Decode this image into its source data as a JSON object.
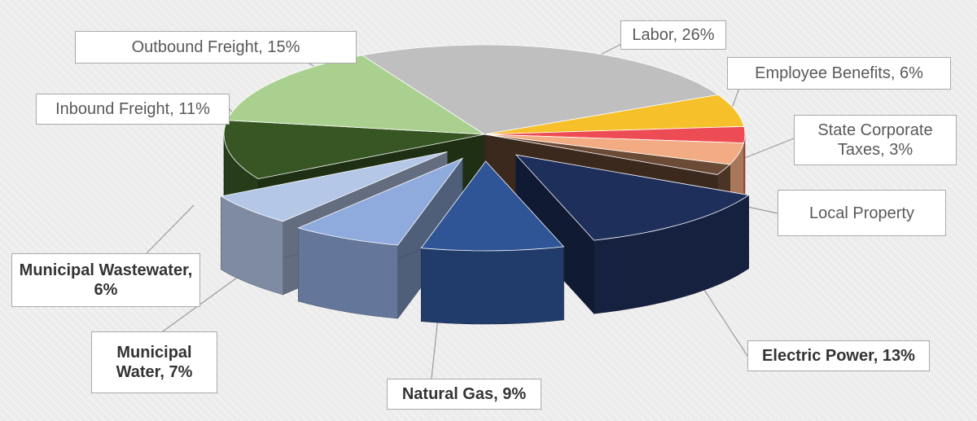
{
  "chart_data": {
    "type": "pie",
    "style": "3d-exploded",
    "unit": "%",
    "slices": [
      {
        "key": "labor",
        "label": "Labor, 26%",
        "name": "Labor",
        "value": 26,
        "color": "#bfbfbf",
        "exploded": false
      },
      {
        "key": "employee-benefits",
        "label": "Employee Benefits, 6%",
        "name": "Employee Benefits",
        "value": 6,
        "color": "#f5c02a",
        "exploded": false
      },
      {
        "key": "state-corporate-taxes",
        "label": "State Corporate Taxes, 3%",
        "name": "State Corporate Taxes",
        "value": 3,
        "color": "#ee4c55",
        "exploded": false
      },
      {
        "key": "local-property",
        "label": "Local Property",
        "name": "Local Property",
        "value": 4,
        "color": "#f2ab82",
        "exploded": false
      },
      {
        "key": "other",
        "label": "",
        "name": "",
        "value": 2,
        "color": "#6b4a36",
        "exploded": false
      },
      {
        "key": "electric-power",
        "label": "Electric Power, 13%",
        "name": "Electric Power",
        "value": 13,
        "color": "#1f2f5c",
        "exploded": true
      },
      {
        "key": "natural-gas",
        "label": "Natural Gas, 9%",
        "name": "Natural Gas",
        "value": 9,
        "color": "#2f5597",
        "exploded": true
      },
      {
        "key": "municipal-water",
        "label": "Municipal Water, 7%",
        "name": "Municipal Water",
        "value": 7,
        "color": "#8faadc",
        "exploded": true
      },
      {
        "key": "municipal-wastewater",
        "label": "Municipal Wastewater, 6%",
        "name": "Municipal Wastewater",
        "value": 6,
        "color": "#b4c7e7",
        "exploded": true
      },
      {
        "key": "inbound-freight",
        "label": "Inbound Freight, 11%",
        "name": "Inbound Freight",
        "value": 11,
        "color": "#375623",
        "exploded": false
      },
      {
        "key": "outbound-freight",
        "label": "Outbound Freight, 15%",
        "name": "Outbound Freight",
        "value": 15,
        "color": "#a9d08e",
        "exploded": false
      }
    ]
  },
  "labels": {
    "labor": "Labor, 26%",
    "employee_benefits": "Employee Benefits, 6%",
    "state_corporate_taxes": "State Corporate Taxes, 3%",
    "local_property": "Local Property",
    "electric_power": "Electric Power, 13%",
    "natural_gas": "Natural Gas, 9%",
    "municipal_water": "Municipal Water, 7%",
    "municipal_wastewater": "Municipal Wastewater, 6%",
    "inbound_freight": "Inbound Freight, 11%",
    "outbound_freight": "Outbound Freight, 15%"
  }
}
